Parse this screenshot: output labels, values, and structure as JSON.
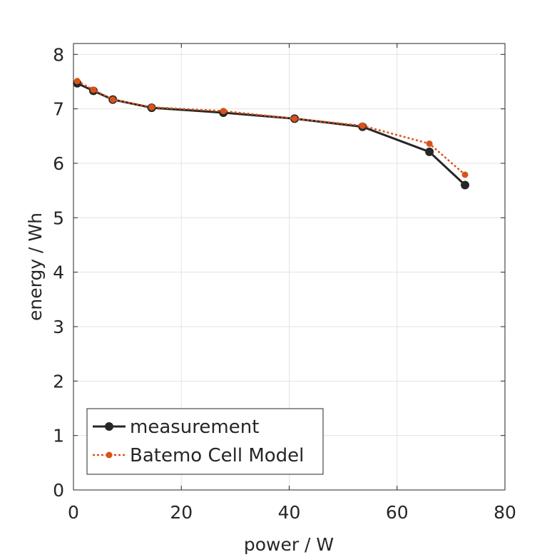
{
  "chart_data": {
    "type": "line",
    "title": "",
    "xlabel": "power / W",
    "ylabel": "energy / Wh",
    "xlim": [
      0,
      80
    ],
    "ylim": [
      0,
      8.2
    ],
    "xticks": [
      0,
      20,
      40,
      60,
      80
    ],
    "yticks": [
      0,
      1,
      2,
      3,
      4,
      5,
      6,
      7,
      8
    ],
    "grid": true,
    "legend_position": "bottom-left",
    "series": [
      {
        "name": "measurement",
        "color": "#262626",
        "style": "solid",
        "marker": "circle-large",
        "x": [
          0.7,
          3.7,
          7.3,
          14.5,
          27.8,
          41.0,
          53.6,
          66.0,
          72.6
        ],
        "y": [
          7.47,
          7.33,
          7.17,
          7.02,
          6.93,
          6.82,
          6.67,
          6.21,
          5.6
        ]
      },
      {
        "name": "Batemo Cell Model",
        "color": "#D95319",
        "style": "dotted",
        "marker": "circle-small",
        "x": [
          0.7,
          3.7,
          7.3,
          14.5,
          27.8,
          41.0,
          53.6,
          66.0,
          72.6
        ],
        "y": [
          7.51,
          7.35,
          7.17,
          7.03,
          6.96,
          6.82,
          6.69,
          6.36,
          5.79
        ]
      }
    ]
  }
}
